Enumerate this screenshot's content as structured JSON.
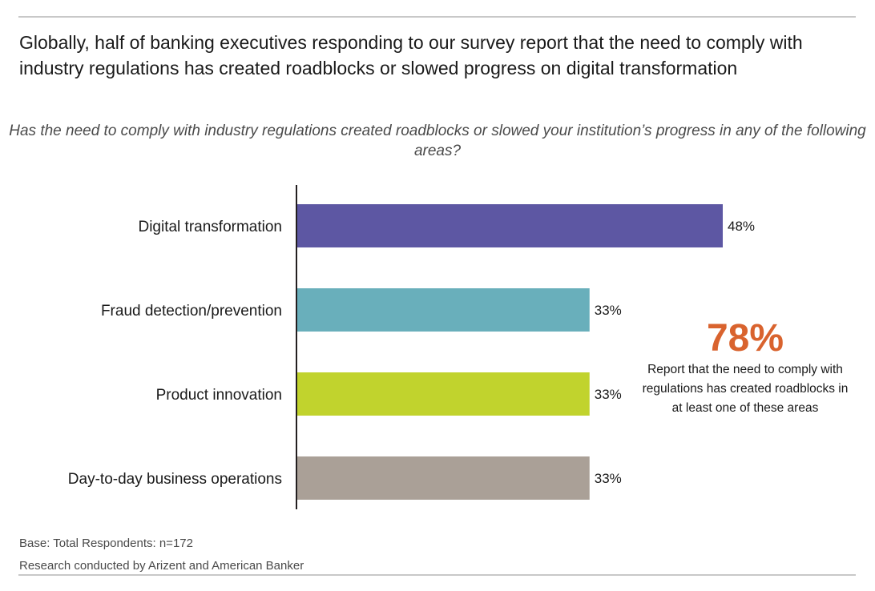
{
  "title": "Globally, half of banking executives responding to our survey report that the need to comply with industry regulations has created roadblocks or slowed progress on digital transformation",
  "callout": {
    "value": "78%",
    "text": "Report that the need to comply with regulations has created roadblocks in at least one of these areas",
    "color": "#d9632e"
  },
  "footer": {
    "base": "Base: Total Respondents: n=172",
    "source": "Research conducted by Arizent and American Banker"
  },
  "chart_data": {
    "type": "bar",
    "orientation": "horizontal",
    "title": "Has the need to comply with industry regulations created roadblocks or slowed your institution’s progress in any of the following areas?",
    "xlabel": "",
    "ylabel": "",
    "xlim": [
      0,
      50
    ],
    "grid": false,
    "categories": [
      "Digital transformation",
      "Fraud detection/prevention",
      "Product innovation",
      "Day-to-day business operations"
    ],
    "values": [
      48,
      33,
      33,
      33
    ],
    "labels": [
      "48%",
      "33%",
      "33%",
      "33%"
    ],
    "colors": [
      "#5d57a3",
      "#69afbb",
      "#c1d32d",
      "#aaa097"
    ],
    "unit": "%"
  }
}
